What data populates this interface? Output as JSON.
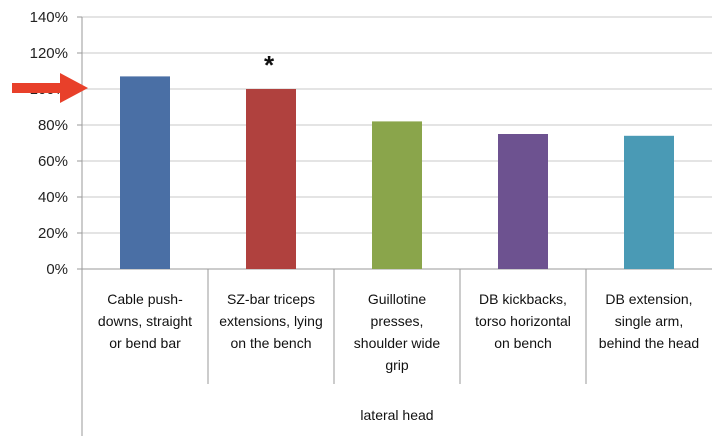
{
  "chart_data": {
    "type": "bar",
    "categories": [
      [
        "Cable push-",
        "downs, straight",
        "or bend bar"
      ],
      [
        "SZ-bar triceps",
        "extensions, lying",
        "on the bench"
      ],
      [
        "Guillotine",
        "presses,",
        "shoulder wide",
        "grip"
      ],
      [
        "DB kickbacks,",
        "torso horizontal",
        "on bench"
      ],
      [
        "DB extension,",
        "single arm,",
        "behind the head"
      ]
    ],
    "values": [
      107,
      100,
      82,
      75,
      74
    ],
    "colors": [
      "#4a6fa5",
      "#b0413e",
      "#8aa54b",
      "#6d5290",
      "#4a9ab5"
    ],
    "group_label": "lateral head",
    "ylim": [
      0,
      140
    ],
    "yticks": [
      "0%",
      "20%",
      "40%",
      "60%",
      "80%",
      "100%",
      "120%",
      "140%"
    ],
    "grid": true,
    "annotations": {
      "asterisk": {
        "text": "*",
        "category_index": 1
      },
      "arrow": {
        "points_to_value": 100,
        "color": "#e8402a"
      }
    }
  }
}
